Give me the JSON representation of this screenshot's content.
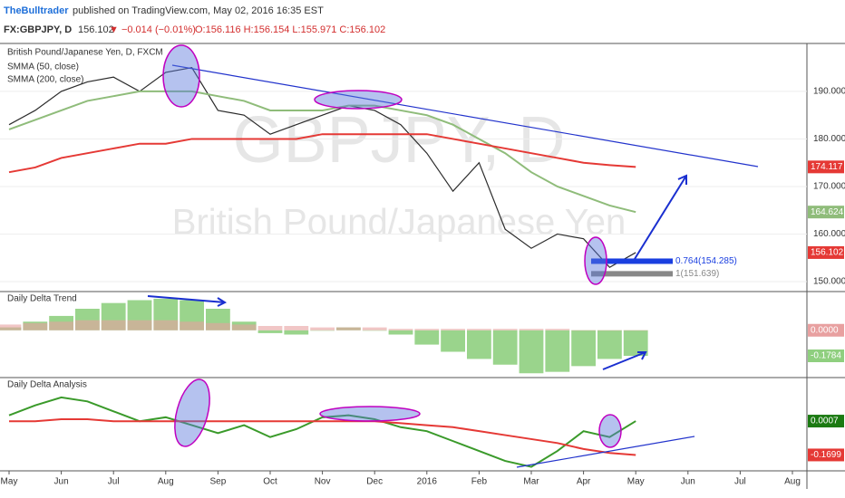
{
  "header": {
    "author": "TheBulltrader",
    "published": "published on TradingView.com, May 02, 2016 16:35 EST",
    "symbol": "FX:GBPJPY, D",
    "price": "156.102",
    "change": "▼ −0.014 (−0.01%)",
    "ohlc": "O:156.116 H:156.154 L:155.971 C:156.102"
  },
  "watermark": [
    "GBPJPY, D",
    "British Pound/Japanese Yen"
  ],
  "chart_data": [
    {
      "type": "line",
      "title": "British Pound/Japanese Yen, D, FXCM",
      "categories": [
        "May",
        null,
        "Jun",
        null,
        "Jul",
        null,
        "Aug",
        null,
        "Sep",
        null,
        "Oct",
        null,
        "Nov",
        null,
        "Dec",
        null,
        "2016",
        null,
        "Feb",
        null,
        "Mar",
        null,
        "Apr",
        null,
        "May",
        null,
        "Jun",
        null,
        "Jul",
        null,
        "Aug",
        null
      ],
      "series": [
        {
          "color": "#2b2b2b",
          "values": [
            183,
            186,
            190,
            192,
            193,
            190,
            194,
            195,
            186,
            185,
            181,
            183,
            185,
            187,
            186,
            183,
            177,
            169,
            175,
            161,
            157,
            160,
            159,
            153,
            156.102,
            null,
            null,
            null,
            null,
            null,
            null,
            null
          ]
        },
        {
          "name": "SMMA (50, close)",
          "color": "#8fbc7a",
          "values": [
            182,
            184,
            186,
            188,
            189,
            190,
            190,
            190,
            189,
            188,
            186,
            186,
            186,
            187,
            187,
            186,
            185,
            183,
            180,
            177,
            173,
            170,
            168,
            166,
            164.624,
            null,
            null,
            null,
            null,
            null,
            null,
            null
          ]
        },
        {
          "name": "SMMA (200, close)",
          "color": "#e53935",
          "values": [
            173,
            174,
            176,
            177,
            178,
            179,
            179,
            180,
            180,
            180,
            180,
            180,
            181,
            181,
            181,
            181,
            181,
            180,
            179,
            178,
            177,
            176,
            175,
            174.5,
            174.117,
            null,
            null,
            null,
            null,
            null,
            null,
            null
          ]
        }
      ],
      "ylim": [
        147.9,
        199.7
      ],
      "yticks": [
        {
          "value": 150,
          "label": "150.000"
        },
        {
          "value": 160,
          "label": "160.000"
        },
        {
          "value": 170,
          "label": "170.000"
        },
        {
          "value": 180,
          "label": "180.000"
        },
        {
          "value": 190,
          "label": "190.000"
        }
      ],
      "price_tags": [
        {
          "value": 174.117,
          "label": "174.117",
          "color": "#e53935"
        },
        {
          "value": 164.624,
          "label": "164.624",
          "color": "#8fbc7a"
        },
        {
          "value": 156.102,
          "label": "156.102",
          "color": "#e53935"
        }
      ],
      "levels": [
        {
          "value": 154.285,
          "label": "0.764(154.285)",
          "color": "#1a3fe0"
        },
        {
          "value": 151.639,
          "label": "1(151.639)",
          "color": "#888888"
        }
      ]
    },
    {
      "type": "bar",
      "title": "Daily Delta Trend",
      "series": [
        {
          "color": "#8fcf7f",
          "values": [
            0.02,
            0.06,
            0.1,
            0.15,
            0.19,
            0.21,
            0.22,
            0.21,
            0.15,
            0.06,
            -0.02,
            -0.03,
            0.0,
            0.02,
            0.0,
            -0.03,
            -0.1,
            -0.15,
            -0.2,
            -0.24,
            -0.3,
            -0.29,
            -0.25,
            -0.2,
            -0.1784,
            null,
            null,
            null,
            null,
            null,
            null,
            null
          ]
        },
        {
          "color": "#e8a0a0",
          "values": [
            0.04,
            0.05,
            0.06,
            0.07,
            0.07,
            0.07,
            0.07,
            0.06,
            0.05,
            0.04,
            0.03,
            0.03,
            0.02,
            0.02,
            0.02,
            0.01,
            0.01,
            0.01,
            0.01,
            0.01,
            0.01,
            0.01,
            0.0,
            0.0,
            0.0,
            null,
            null,
            null,
            null,
            null,
            null,
            null
          ]
        }
      ],
      "ylim": [
        -0.33,
        0.27
      ],
      "price_tags": [
        {
          "value": 0.0,
          "label": "0.0000",
          "color": "#e8a0a0"
        },
        {
          "value": -0.1784,
          "label": "-0.1784",
          "color": "#8fcf7f"
        }
      ]
    },
    {
      "type": "line",
      "title": "Daily Delta Analysis",
      "series": [
        {
          "color": "#3a9a2a",
          "values": [
            0.03,
            0.08,
            0.12,
            0.1,
            0.05,
            0.0,
            0.02,
            -0.02,
            -0.06,
            -0.02,
            -0.08,
            -0.04,
            0.02,
            0.03,
            0.01,
            -0.03,
            -0.05,
            -0.1,
            -0.15,
            -0.2,
            -0.23,
            -0.15,
            -0.05,
            -0.08,
            0.0007,
            null,
            null,
            null,
            null,
            null,
            null,
            null
          ]
        },
        {
          "color": "#e53935",
          "values": [
            0.0,
            0.0,
            0.01,
            0.01,
            0.0,
            0.0,
            0.0,
            0.0,
            0.0,
            0.0,
            0.0,
            0.0,
            0.0,
            0.0,
            0.0,
            -0.01,
            -0.02,
            -0.03,
            -0.05,
            -0.07,
            -0.09,
            -0.11,
            -0.14,
            -0.16,
            -0.1699,
            null,
            null,
            null,
            null,
            null,
            null,
            null
          ]
        }
      ],
      "ylim": [
        -0.25,
        0.22
      ],
      "price_tags": [
        {
          "value": 0.0007,
          "label": "0.0007",
          "color": "#1b7a12"
        },
        {
          "value": -0.1699,
          "label": "-0.1699",
          "color": "#e53935"
        }
      ]
    }
  ]
}
